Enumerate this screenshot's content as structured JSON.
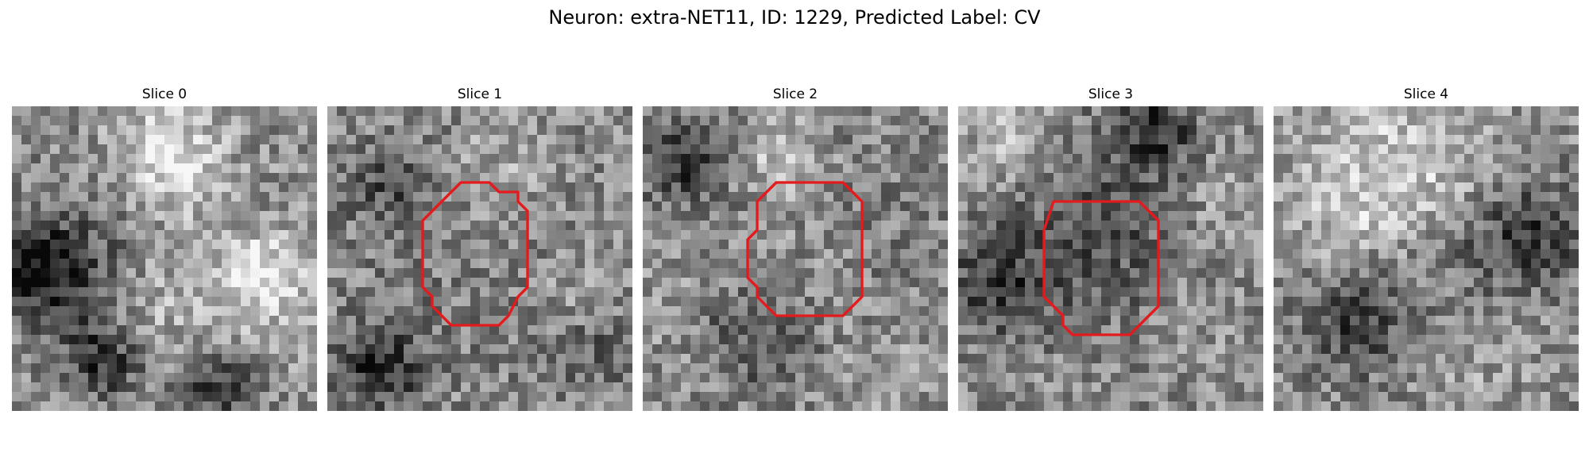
{
  "title": "Neuron: extra-NET11, ID: 1229, Predicted Label: CV",
  "panels": [
    {
      "label": "Slice 0"
    },
    {
      "label": "Slice 1"
    },
    {
      "label": "Slice 2"
    },
    {
      "label": "Slice 3"
    },
    {
      "label": "Slice 4"
    }
  ],
  "colors": {
    "outline": "#e41a1c",
    "background": "#ffffff"
  },
  "image": {
    "colormap": "grayscale",
    "content": "noisy grayscale microscopy slices of a neuron cross-section; slices 1-3 carry a red segmentation outline around a roughly circular bright region"
  }
}
